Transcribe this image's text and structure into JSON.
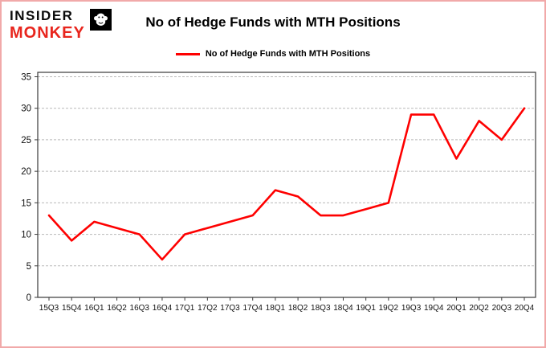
{
  "logo": {
    "line1": "INSIDER",
    "line2": "MONKEY"
  },
  "header": {
    "title": "No of Hedge Funds with MTH Positions"
  },
  "legend": {
    "label": "No of Hedge Funds with MTH Positions",
    "color": "#fe0000"
  },
  "chart_data": {
    "type": "line",
    "title": "No of Hedge Funds with MTH Positions",
    "categories": [
      "15Q3",
      "15Q4",
      "16Q1",
      "16Q2",
      "16Q3",
      "16Q4",
      "17Q1",
      "17Q2",
      "17Q3",
      "17Q4",
      "18Q1",
      "18Q2",
      "18Q3",
      "18Q4",
      "19Q1",
      "19Q2",
      "19Q3",
      "19Q4",
      "20Q1",
      "20Q2",
      "20Q3",
      "20Q4"
    ],
    "series": [
      {
        "name": "No of Hedge Funds with MTH Positions",
        "color": "#fe0000",
        "values": [
          13,
          9,
          12,
          11,
          10,
          6,
          10,
          11,
          12,
          13,
          17,
          16,
          13,
          13,
          14,
          15,
          29,
          29,
          22,
          28,
          25,
          30
        ]
      }
    ],
    "ylim": [
      0,
      35.7
    ],
    "yticks": [
      0,
      5,
      10,
      15,
      20,
      25,
      30,
      35
    ],
    "grid": true,
    "legend_position": "top"
  },
  "colors": {
    "line": "#fe0000",
    "grid": "#b9b9b9",
    "plot_border": "#3a3a3a",
    "page_border": "#f1a9a9",
    "tick_text": "#111111"
  }
}
